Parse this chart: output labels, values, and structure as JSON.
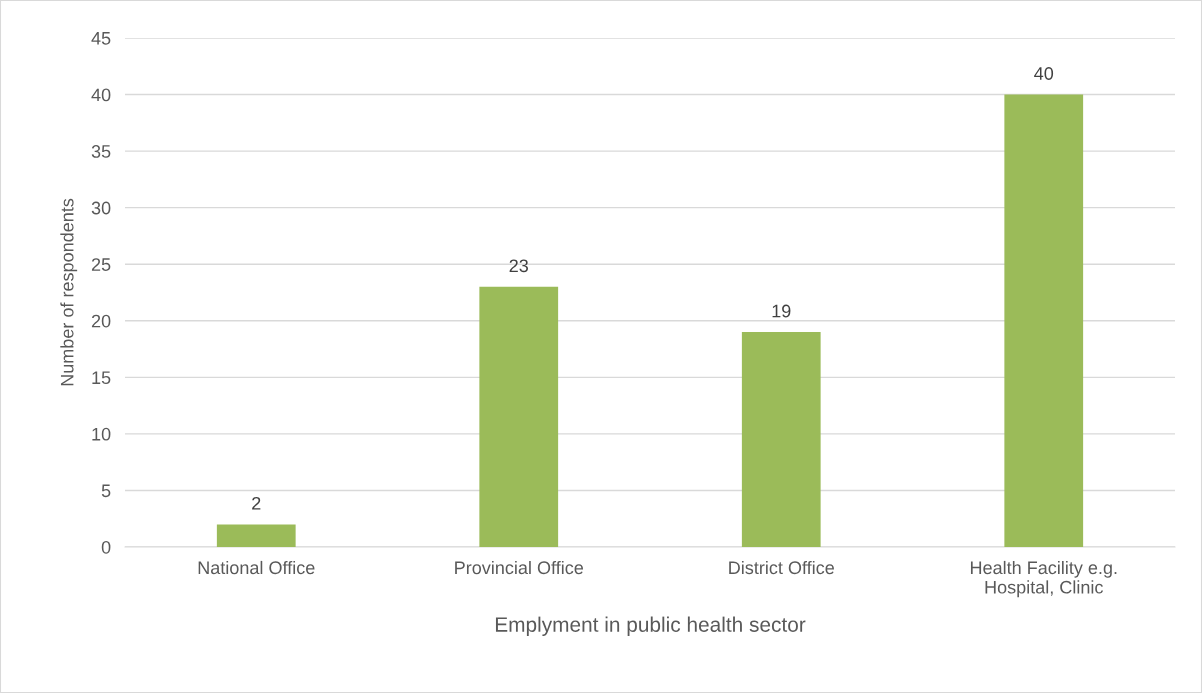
{
  "chart_data": {
    "type": "bar",
    "xlabel": "Emplyment in public health sector",
    "ylabel": "Number of respondents",
    "categories": [
      "National Office",
      "Provincial Office",
      "District Office",
      "Health Facility e.g.\nHospital, Clinic"
    ],
    "values": [
      2,
      23,
      19,
      40
    ],
    "color": "#9bbb59",
    "ylim": [
      0,
      45
    ],
    "yticks": [
      0,
      5,
      10,
      15,
      20,
      25,
      30,
      35,
      40,
      45
    ],
    "grid": "y",
    "data_labels": true
  }
}
